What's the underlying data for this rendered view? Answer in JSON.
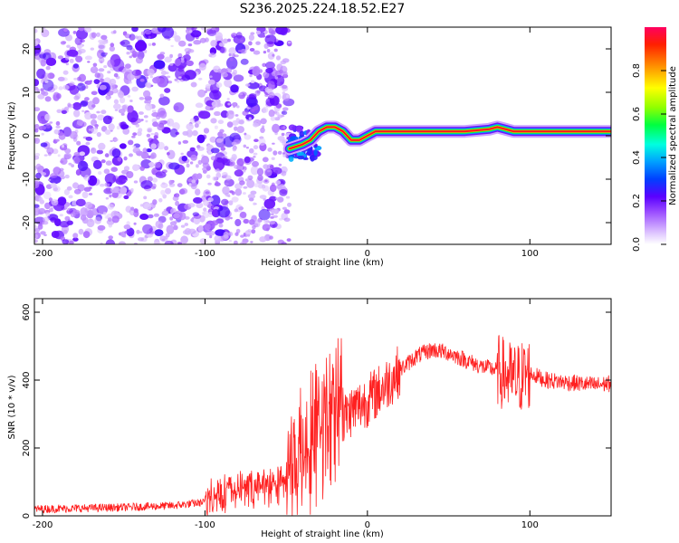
{
  "title": "S236.2025.224.18.52.E27",
  "chart_data": [
    {
      "type": "heatmap",
      "xlabel": "Height of straight line (km)",
      "ylabel": "Frequency (Hz)",
      "xlim": [
        -205,
        150
      ],
      "ylim": [
        -25,
        25
      ],
      "xticks": [
        -200,
        -100,
        0,
        100
      ],
      "yticks": [
        20,
        10,
        0,
        -10,
        -20
      ],
      "colorbar": {
        "label": "Normalized spectral amplitude",
        "range": [
          0,
          1
        ],
        "ticks": [
          "0.0",
          "0.2",
          "0.4",
          "0.6",
          "0.8"
        ],
        "tick_values": [
          0,
          0.2,
          0.4,
          0.6,
          0.8
        ]
      },
      "regions": [
        {
          "name": "noise",
          "x_range": [
            -205,
            -48
          ],
          "freq_range": [
            -25,
            25
          ],
          "amplitude": 0.15
        },
        {
          "name": "transition",
          "x_range": [
            -48,
            -30
          ],
          "freq_range": [
            -6,
            2
          ],
          "amplitude": 0.3
        },
        {
          "name": "carrier",
          "x_range": [
            -30,
            150
          ],
          "freq_hz": 1,
          "amplitude": 1.0
        }
      ],
      "carrier_path": {
        "x": [
          -48,
          -40,
          -35,
          -30,
          -25,
          -20,
          -15,
          -10,
          -5,
          0,
          5,
          20,
          40,
          60,
          75,
          80,
          85,
          90,
          100,
          120,
          150
        ],
        "freq": [
          -3,
          -2,
          -1,
          1,
          2,
          2,
          1,
          -1,
          -1,
          0,
          1,
          1,
          1,
          1,
          1.5,
          2,
          1.5,
          1,
          1,
          1,
          1
        ]
      }
    },
    {
      "type": "line",
      "xlabel": "Height of straight line (km)",
      "ylabel": "SNR (10 * v/v)",
      "xlim": [
        -205,
        150
      ],
      "ylim": [
        0,
        640
      ],
      "xticks": [
        -200,
        -100,
        0,
        100
      ],
      "yticks": [
        0,
        200,
        400,
        600
      ],
      "color": "#ff2020",
      "series": [
        {
          "name": "SNR",
          "x": [
            -205,
            -180,
            -150,
            -120,
            -100,
            -80,
            -60,
            -50,
            -40,
            -30,
            -20,
            -10,
            0,
            10,
            20,
            30,
            40,
            50,
            60,
            70,
            80,
            90,
            100,
            110,
            120,
            130,
            140,
            150
          ],
          "y": [
            20,
            22,
            25,
            30,
            40,
            60,
            70,
            80,
            130,
            200,
            260,
            310,
            340,
            380,
            430,
            470,
            490,
            480,
            460,
            440,
            430,
            400,
            420,
            400,
            395,
            390,
            385,
            390
          ]
        }
      ]
    }
  ]
}
